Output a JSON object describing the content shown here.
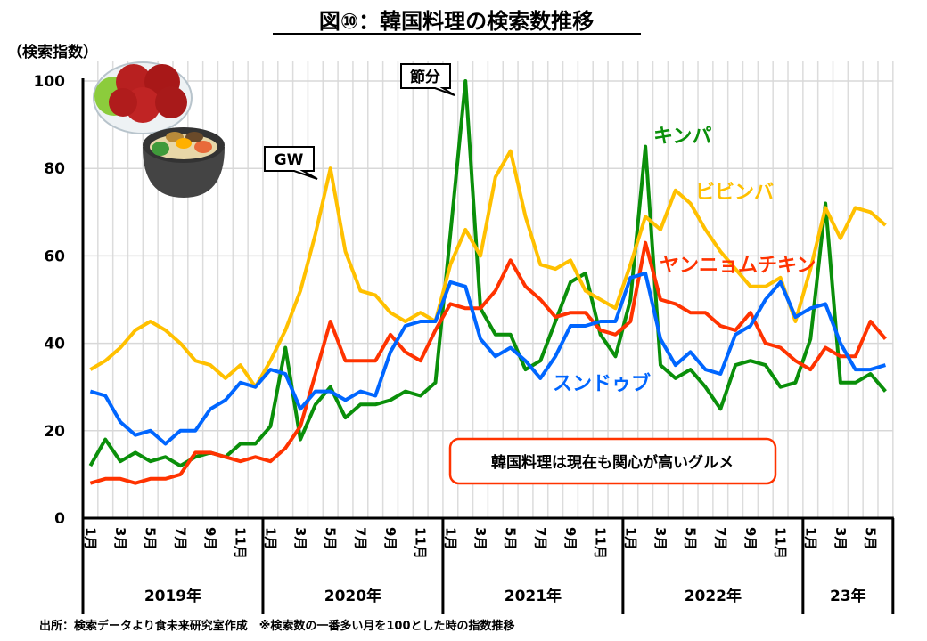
{
  "title": "図⑩：韓国料理の検索数推移",
  "footer": "出所：検索データより食未来研究室作成　※検索数の一番多い月を100とした時の指数推移",
  "chart_data": {
    "type": "line",
    "title": "図⑩：韓国料理の検索数推移",
    "ylabel": "（検索指数）",
    "ylim": [
      0,
      100
    ],
    "yticks": [
      0,
      20,
      40,
      60,
      80,
      100
    ],
    "grid": true,
    "x_start": "2019-01",
    "x_end": "2023-06",
    "month_tick_labels": [
      "1月",
      "3月",
      "5月",
      "7月",
      "9月",
      "11月"
    ],
    "year_labels": [
      "2019年",
      "2020年",
      "2021年",
      "2022年",
      "23年"
    ],
    "series": [
      {
        "name": "キンパ",
        "color": "#0a8f0a",
        "values": [
          12,
          18,
          13,
          15,
          13,
          14,
          12,
          14,
          15,
          14,
          17,
          17,
          21,
          39,
          18,
          26,
          30,
          23,
          26,
          26,
          27,
          29,
          28,
          31,
          65,
          100,
          48,
          42,
          42,
          34,
          36,
          45,
          54,
          56,
          42,
          37,
          50,
          85,
          35,
          32,
          34,
          30,
          25,
          35,
          36,
          35,
          30,
          31,
          41,
          72,
          31,
          31,
          33,
          29
        ]
      },
      {
        "name": "ビビンバ",
        "color": "#ffc000",
        "values": [
          34,
          36,
          39,
          43,
          45,
          43,
          40,
          36,
          35,
          32,
          35,
          30,
          36,
          43,
          52,
          65,
          80,
          61,
          52,
          51,
          47,
          45,
          47,
          45,
          58,
          66,
          60,
          78,
          84,
          69,
          58,
          57,
          59,
          52,
          50,
          48,
          58,
          69,
          66,
          75,
          72,
          66,
          61,
          57,
          53,
          53,
          55,
          45,
          57,
          71,
          64,
          71,
          70,
          67
        ]
      },
      {
        "name": "ヤンニョムチキン",
        "color": "#ff3300",
        "values": [
          8,
          9,
          9,
          8,
          9,
          9,
          10,
          15,
          15,
          14,
          13,
          14,
          13,
          16,
          21,
          33,
          45,
          36,
          36,
          36,
          42,
          38,
          36,
          43,
          49,
          48,
          48,
          52,
          59,
          53,
          50,
          46,
          47,
          47,
          43,
          42,
          45,
          63,
          50,
          49,
          47,
          47,
          44,
          43,
          47,
          40,
          39,
          36,
          34,
          39,
          37,
          37,
          45,
          41
        ]
      },
      {
        "name": "スンドゥブ",
        "color": "#0066ff",
        "values": [
          29,
          28,
          22,
          19,
          20,
          17,
          20,
          20,
          25,
          27,
          31,
          30,
          34,
          33,
          25,
          29,
          29,
          27,
          29,
          28,
          38,
          44,
          45,
          45,
          54,
          53,
          41,
          37,
          39,
          36,
          32,
          37,
          44,
          44,
          45,
          45,
          55,
          56,
          41,
          35,
          38,
          34,
          33,
          42,
          44,
          50,
          54,
          46,
          48,
          49,
          40,
          34,
          34,
          35
        ]
      }
    ],
    "annotations": [
      {
        "text": "GW",
        "series": "ビビンバ",
        "at": "2020-05"
      },
      {
        "text": "節分",
        "series": "キンパ",
        "at": "2021-02"
      },
      {
        "text": "韓国料理は現在も関心が高いグルメ"
      }
    ]
  }
}
